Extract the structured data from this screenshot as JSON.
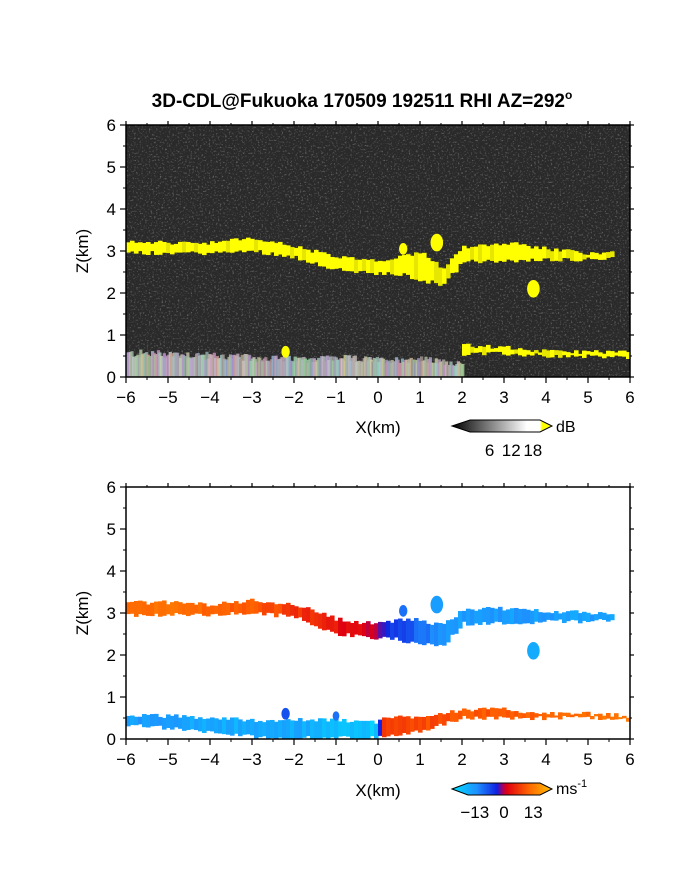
{
  "title": "3D-CDL@Fukuoka 170509 192511 RHI AZ=292",
  "title_degree": "o",
  "chart_data": [
    {
      "id": "reflectivity",
      "type": "heatmap",
      "xlabel": "X(km)",
      "ylabel": "Z(km)",
      "xlim": [
        -6,
        6
      ],
      "ylim": [
        0,
        6
      ],
      "xticks": [
        -6,
        -5,
        -4,
        -3,
        -2,
        -1,
        0,
        1,
        2,
        3,
        4,
        5,
        6
      ],
      "yticks": [
        0,
        1,
        2,
        3,
        4,
        5,
        6
      ],
      "colorbar": {
        "unit": "dB",
        "ticks": [
          6,
          12,
          18
        ],
        "range": [
          0,
          20
        ]
      },
      "colors": {
        "background": "#2a2a2a",
        "strong_echo": "#ffff00",
        "mid_echo": "#e6e600"
      },
      "layers": [
        {
          "name": "cloud layer",
          "x": [
            -6.0,
            -5.0,
            -4.0,
            -3.0,
            -2.0,
            -1.0,
            0.0,
            0.5,
            1.0,
            1.5,
            2.0,
            3.0,
            4.0,
            5.0,
            5.6
          ],
          "z_top": [
            3.2,
            3.2,
            3.2,
            3.3,
            3.1,
            2.85,
            2.75,
            2.85,
            2.95,
            2.6,
            3.1,
            3.2,
            3.05,
            2.95,
            3.0
          ],
          "z_bottom": [
            2.95,
            2.95,
            2.95,
            3.0,
            2.85,
            2.55,
            2.45,
            2.45,
            2.3,
            2.2,
            2.75,
            2.75,
            2.8,
            2.8,
            2.85
          ]
        },
        {
          "name": "low layer",
          "x": [
            2.0,
            3.0,
            4.0,
            5.0,
            6.0
          ],
          "z_top": [
            0.75,
            0.7,
            0.6,
            0.6,
            0.6
          ],
          "z_bottom": [
            0.55,
            0.55,
            0.5,
            0.5,
            0.45
          ]
        }
      ],
      "cells": [
        {
          "x": 0.6,
          "z": 3.05,
          "r": 0.1
        },
        {
          "x": 1.4,
          "z": 3.2,
          "r": 0.15
        },
        {
          "x": 3.7,
          "z": 2.1,
          "r": 0.15
        },
        {
          "x": -2.2,
          "z": 0.6,
          "r": 0.1
        }
      ],
      "ground_clutter": {
        "x": [
          -6.0,
          -5.0,
          -4.0,
          -3.0,
          -2.0,
          -1.0,
          0.0,
          1.0,
          2.0
        ],
        "z_top": [
          0.55,
          0.55,
          0.5,
          0.45,
          0.42,
          0.45,
          0.4,
          0.42,
          0.3
        ]
      }
    },
    {
      "id": "doppler-velocity",
      "type": "heatmap",
      "xlabel": "X(km)",
      "ylabel": "Z(km)",
      "xlim": [
        -6,
        6
      ],
      "ylim": [
        0,
        6
      ],
      "xticks": [
        -6,
        -5,
        -4,
        -3,
        -2,
        -1,
        0,
        1,
        2,
        3,
        4,
        5,
        6
      ],
      "yticks": [
        0,
        1,
        2,
        3,
        4,
        5,
        6
      ],
      "colorbar": {
        "unit": "ms",
        "unit_exponent": "-1",
        "ticks": [
          -13,
          0,
          13
        ],
        "range": [
          -16,
          16
        ]
      },
      "colors": {
        "neg_far": "#00e0ff",
        "neg_mid": "#1e90ff",
        "neg_near": "#1020e0",
        "zero": "#9b006e",
        "pos_near": "#e00010",
        "pos_mid": "#ff5a00",
        "pos_far": "#ffb000"
      },
      "layers": [
        {
          "name": "cloud layer",
          "x": [
            -6.0,
            -5.0,
            -4.0,
            -3.0,
            -2.0,
            -1.0,
            -0.2,
            0.2,
            0.8,
            1.5,
            2.0,
            3.0,
            4.0,
            5.0,
            5.6
          ],
          "z_top": [
            3.25,
            3.25,
            3.2,
            3.3,
            3.2,
            2.85,
            2.75,
            2.8,
            2.85,
            2.7,
            3.1,
            3.1,
            3.05,
            3.0,
            3.0
          ],
          "z_bottom": [
            2.95,
            2.95,
            2.95,
            3.0,
            2.9,
            2.5,
            2.4,
            2.4,
            2.3,
            2.2,
            2.75,
            2.75,
            2.8,
            2.8,
            2.85
          ],
          "velocity": [
            10,
            10,
            9,
            8,
            6,
            4,
            2,
            -4,
            -7,
            -10,
            -11,
            -11,
            -11,
            -11,
            -11
          ]
        },
        {
          "name": "low layer",
          "x": [
            -6.0,
            -5.0,
            -4.0,
            -3.0,
            -2.0,
            -1.0,
            -0.1,
            0.1,
            1.0,
            2.0,
            3.0,
            4.0,
            5.0,
            6.0
          ],
          "z_top": [
            0.55,
            0.55,
            0.5,
            0.45,
            0.45,
            0.45,
            0.4,
            0.5,
            0.55,
            0.7,
            0.7,
            0.6,
            0.6,
            0.55
          ],
          "z_bottom": [
            0.35,
            0.25,
            0.15,
            0.05,
            0.02,
            0.02,
            0.02,
            0.05,
            0.2,
            0.5,
            0.5,
            0.5,
            0.5,
            0.45
          ],
          "velocity": [
            -11,
            -11,
            -12,
            -12,
            -12,
            -13,
            -14,
            6,
            7,
            8,
            8,
            9,
            10,
            11
          ]
        }
      ],
      "cells": [
        {
          "x": 0.6,
          "z": 3.05,
          "r": 0.1,
          "v": -8
        },
        {
          "x": 1.4,
          "z": 3.2,
          "r": 0.15,
          "v": -11
        },
        {
          "x": 3.7,
          "z": 2.1,
          "r": 0.15,
          "v": -12
        },
        {
          "x": -2.2,
          "z": 0.6,
          "r": 0.1,
          "v": -6
        },
        {
          "x": -1.0,
          "z": 0.55,
          "r": 0.08,
          "v": -8
        }
      ]
    }
  ]
}
